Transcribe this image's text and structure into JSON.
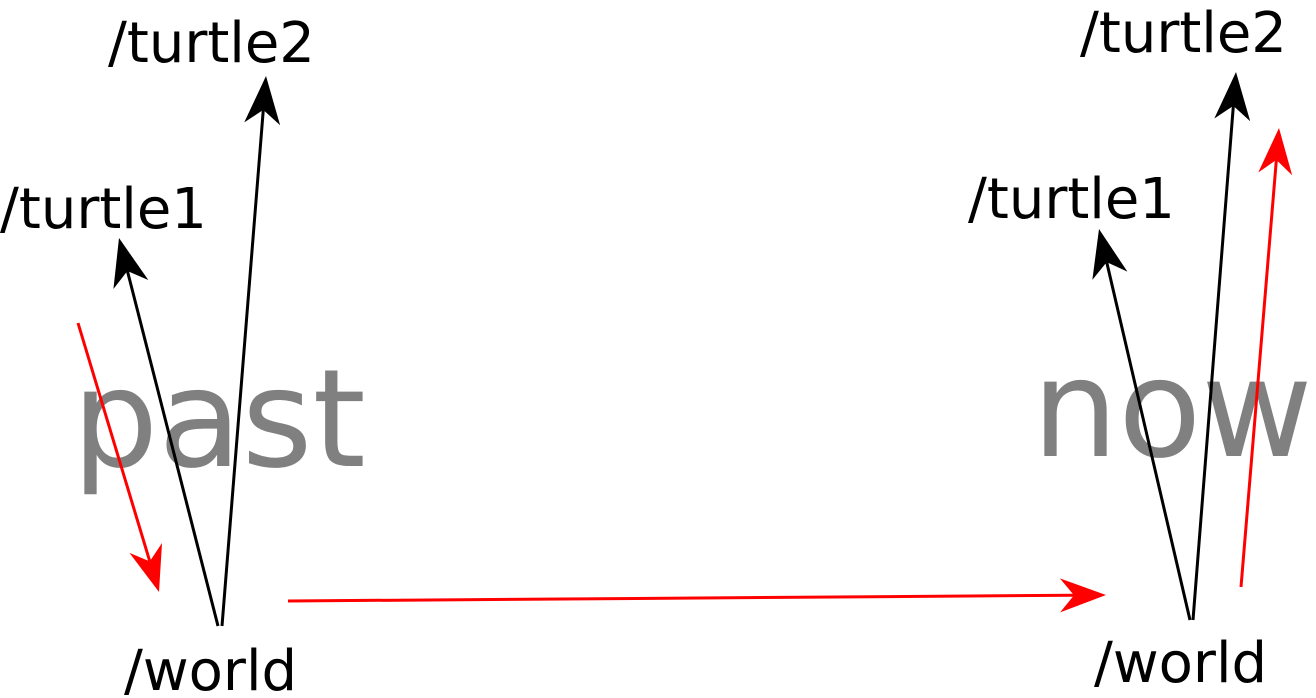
{
  "colors": {
    "frame_arrow": "#000000",
    "motion_arrow": "#ff0000",
    "time_label": "#808080"
  },
  "past": {
    "time_label": "past",
    "turtle1": "/turtle1",
    "turtle2": "/turtle2",
    "world": "/world"
  },
  "now": {
    "time_label": "now",
    "turtle1": "/turtle1",
    "turtle2": "/turtle2",
    "world": "/world"
  }
}
